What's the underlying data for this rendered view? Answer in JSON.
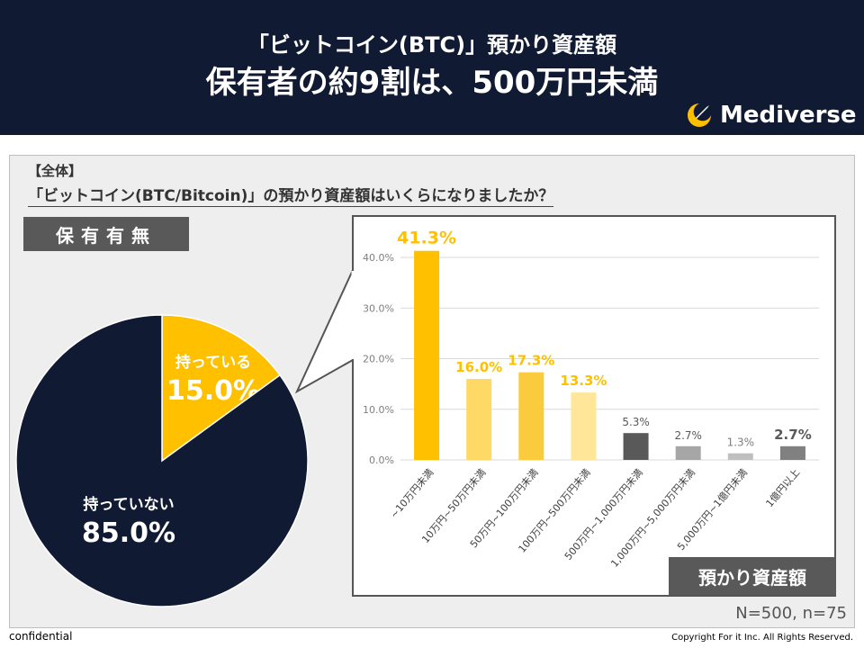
{
  "header": {
    "title_line1": "「ビットコイン(BTC)」預かり資産額",
    "title_line2": "保有者の約9割は、500万円未満",
    "logo_text": "Mediverse"
  },
  "question": {
    "tag": "【全体】",
    "text": "「ビットコイン(BTC/Bitcoin)」の預かり資産額はいくらになりましたか？"
  },
  "section_left_label": "保有有無",
  "section_right_label": "預かり資産額",
  "sample_note": "N=500, n=75",
  "footer": {
    "confidential": "confidential",
    "copyright": "Copyright For it Inc. All Rights Reserved."
  },
  "colors": {
    "navy": "#111a33",
    "gold": "#ffc000",
    "gold_light": "#ffd966",
    "gold_mid": "#fbcb3e",
    "gold_pale": "#ffe699",
    "dark_gray": "#595959",
    "mid_gray": "#a6a6a6",
    "light_gray": "#bfbfbf"
  },
  "chart_data": [
    {
      "type": "pie",
      "title": "保有有無",
      "slices": [
        {
          "label": "持っている",
          "value": 15.0,
          "value_label": "15.0%",
          "color": "#ffc000"
        },
        {
          "label": "持っていない",
          "value": 85.0,
          "value_label": "85.0%",
          "color": "#111a33"
        }
      ]
    },
    {
      "type": "bar",
      "title": "預かり資産額",
      "categories": [
        "~10万円未満",
        "10万円~50万円未満",
        "50万円~100万円未満",
        "100万円~500万円未満",
        "500万円~1,000万円未満",
        "1,000万円~5,000万円未満",
        "5,000万円~1億円未満",
        "1億円以上"
      ],
      "values": [
        41.3,
        16.0,
        17.3,
        13.3,
        5.3,
        2.7,
        1.3,
        2.7
      ],
      "value_labels": [
        "41.3%",
        "16.0%",
        "17.3%",
        "13.3%",
        "5.3%",
        "2.7%",
        "1.3%",
        "2.7%"
      ],
      "bar_colors": [
        "#ffc000",
        "#ffd966",
        "#fbcb3e",
        "#ffe699",
        "#595959",
        "#a6a6a6",
        "#bfbfbf",
        "#808080"
      ],
      "label_colors": [
        "#ffc000",
        "#ffc000",
        "#ffc000",
        "#ffc000",
        "#595959",
        "#595959",
        "#7f7f7f",
        "#595959"
      ],
      "label_emphasis": [
        "large",
        "medium",
        "medium",
        "medium",
        "small",
        "small",
        "small",
        "medium"
      ],
      "yticks": [
        "0.0%",
        "10.0%",
        "20.0%",
        "30.0%",
        "40.0%"
      ],
      "ytick_values": [
        0,
        10,
        20,
        30,
        40
      ],
      "ylim": [
        0,
        40
      ],
      "grid": true
    }
  ]
}
